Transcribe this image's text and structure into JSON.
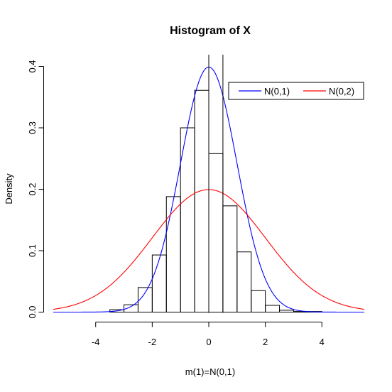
{
  "chart_data": {
    "type": "histogram",
    "title": "Histogram of X",
    "xlabel": "m(1)=N(0,1)",
    "ylabel": "Density",
    "xlim": [
      -5.5,
      5.5
    ],
    "ylim": [
      0,
      0.4
    ],
    "x_ticks": [
      "-4",
      "-2",
      "0",
      "2",
      "4"
    ],
    "x_tick_values": [
      -4,
      -2,
      0,
      2,
      4
    ],
    "y_ticks": [
      "0.0",
      "0.1",
      "0.2",
      "0.3",
      "0.4"
    ],
    "y_tick_values": [
      0,
      0.1,
      0.2,
      0.3,
      0.4
    ],
    "bins": {
      "edges": [
        -3.5,
        -3,
        -2.5,
        -2,
        -1.5,
        -1,
        -0.5,
        0,
        0.5,
        1,
        1.5,
        2,
        2.5,
        3,
        3.5,
        4
      ],
      "density": [
        0.004,
        0.012,
        0.04,
        0.093,
        0.188,
        0.3,
        0.361,
        0.258,
        0.173,
        0.098,
        0.035,
        0.011,
        0.003,
        0.001,
        0.001
      ]
    },
    "vertical_lines": [
      0,
      0.5
    ],
    "series": [
      {
        "name": "N(0,1)",
        "mean": 0,
        "sd": 1,
        "color": "#0000ff"
      },
      {
        "name": "N(0,2)",
        "mean": 0,
        "sd": 2,
        "color": "#ff0000"
      }
    ],
    "legend_position": "top-right",
    "grid": false
  }
}
